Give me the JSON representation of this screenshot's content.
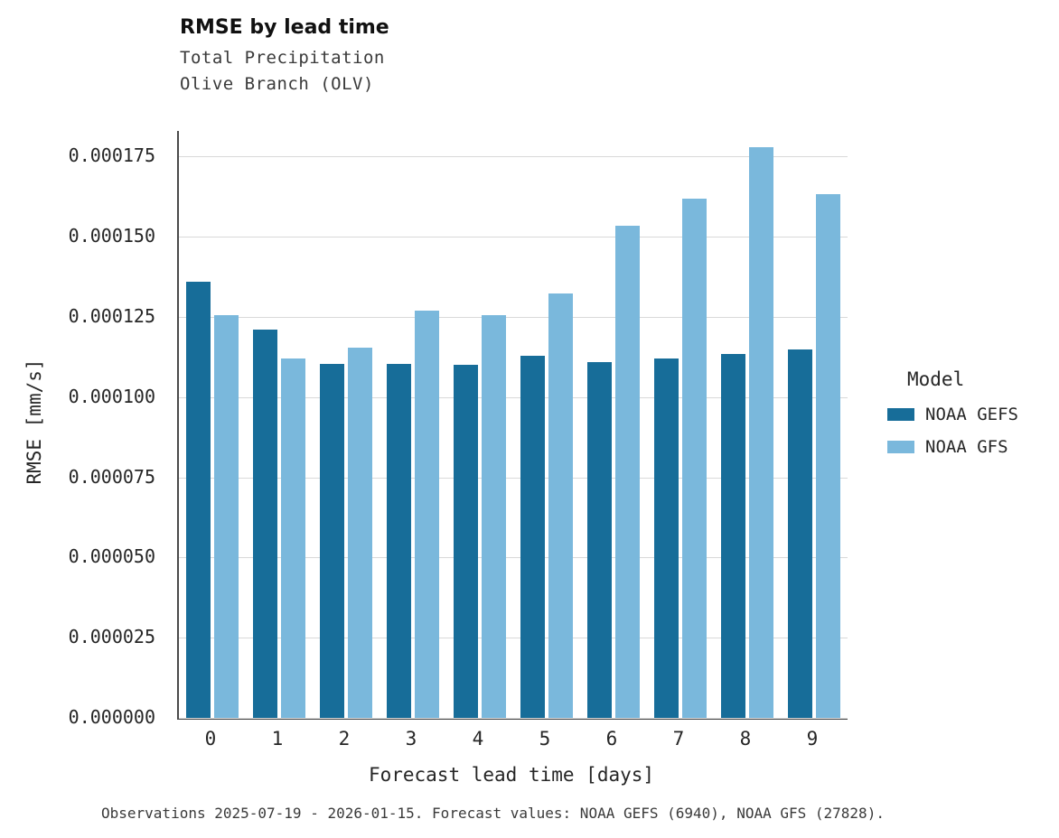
{
  "title": "RMSE by lead time",
  "subtitle_line1": "Total Precipitation",
  "subtitle_line2": "Olive Branch (OLV)",
  "caption": "Observations 2025-07-19 - 2026-01-15. Forecast values: NOAA GEFS (6940), NOAA GFS (27828).",
  "legend": {
    "title": "Model",
    "items": [
      {
        "label": "NOAA GEFS",
        "color": "#176d99"
      },
      {
        "label": "NOAA GFS",
        "color": "#7ab8dc"
      }
    ]
  },
  "chart_data": {
    "type": "bar",
    "title": "RMSE by lead time",
    "subtitle": "Total Precipitation / Olive Branch (OLV)",
    "xlabel": "Forecast lead time [days]",
    "ylabel": "RMSE [mm/s]",
    "categories": [
      "0",
      "1",
      "2",
      "3",
      "4",
      "5",
      "6",
      "7",
      "8",
      "9"
    ],
    "series": [
      {
        "name": "NOAA GEFS",
        "color": "#176d99",
        "values": [
          0.000136,
          0.000121,
          0.0001105,
          0.0001103,
          0.00011,
          0.000113,
          0.000111,
          0.000112,
          0.0001135,
          0.000115
        ]
      },
      {
        "name": "NOAA GFS",
        "color": "#7ab8dc",
        "values": [
          0.0001255,
          0.000112,
          0.0001155,
          0.000127,
          0.0001255,
          0.0001322,
          0.0001535,
          0.000162,
          0.000178,
          0.0001632
        ]
      }
    ],
    "ylim": [
      0,
      0.000183
    ],
    "yticks": [
      0.0,
      2.5e-05,
      5e-05,
      7.5e-05,
      0.0001,
      0.000125,
      0.00015,
      0.000175
    ],
    "grid": "horizontal",
    "legend_position": "right"
  }
}
